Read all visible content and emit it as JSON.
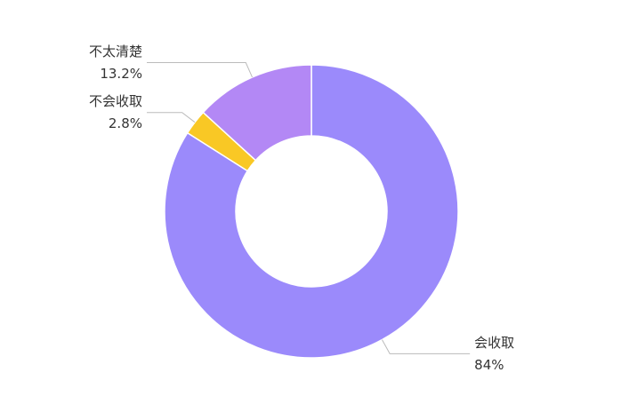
{
  "chart_data": {
    "type": "donut",
    "categories": [
      "会收取",
      "不会收取",
      "不太清楚"
    ],
    "values": [
      84,
      2.8,
      13.2
    ],
    "value_labels": [
      "84%",
      "2.8%",
      "13.2%"
    ],
    "colors": [
      "#9b8afb",
      "#f9c825",
      "#b388f5"
    ]
  }
}
